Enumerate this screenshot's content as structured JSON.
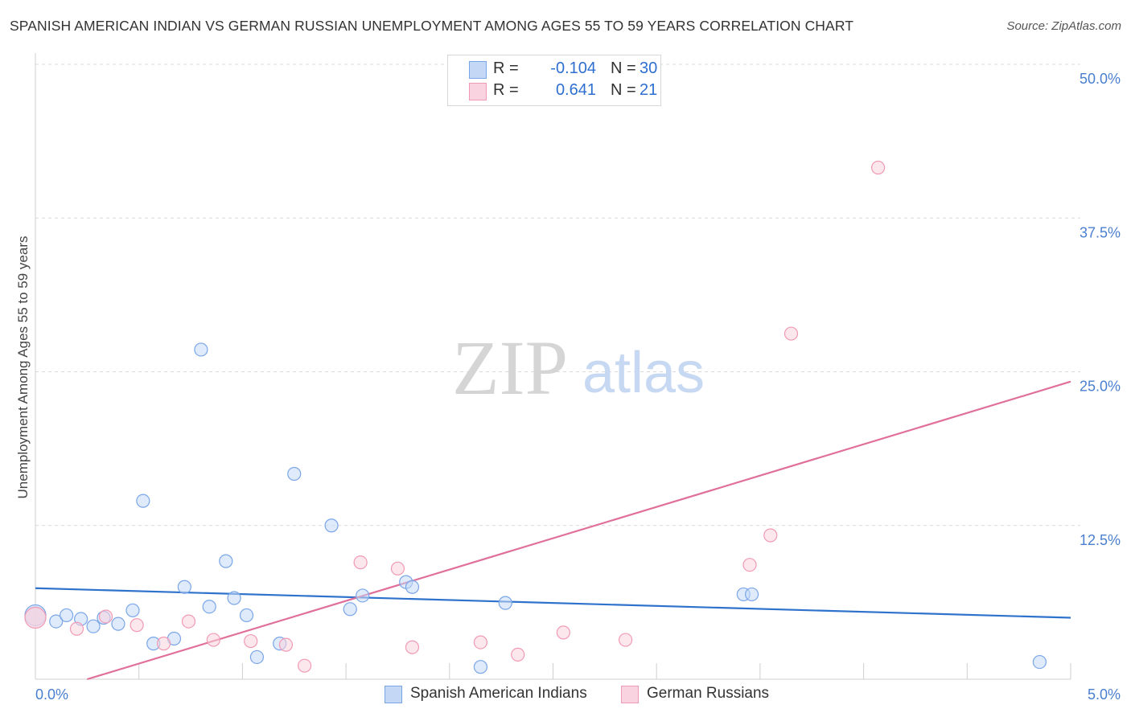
{
  "title": "SPANISH AMERICAN INDIAN VS GERMAN RUSSIAN UNEMPLOYMENT AMONG AGES 55 TO 59 YEARS CORRELATION CHART",
  "source": "Source: ZipAtlas.com",
  "watermark": {
    "zip": "ZIP",
    "atlas": "atlas"
  },
  "legend_stats": [
    {
      "r_label": "R =",
      "r_value": "-0.104",
      "n_label": "N =",
      "n_value": "30"
    },
    {
      "r_label": "R =",
      "r_value": "0.641",
      "n_label": "N =",
      "n_value": "21"
    }
  ],
  "chart_data": {
    "type": "scatter",
    "title": "SPANISH AMERICAN INDIAN VS GERMAN RUSSIAN UNEMPLOYMENT AMONG AGES 55 TO 59 YEARS CORRELATION CHART",
    "xlabel": "",
    "ylabel": "Unemployment Among Ages 55 to 59 years",
    "xlim": [
      0,
      5
    ],
    "ylim": [
      0,
      50
    ],
    "x_tick_labels": [
      "0.0%",
      "5.0%"
    ],
    "y_tick_labels": [
      "12.5%",
      "25.0%",
      "37.5%",
      "50.0%"
    ],
    "y_ticks": [
      12.5,
      25,
      37.5,
      50
    ],
    "legend_position": "bottom",
    "series": [
      {
        "name": "Spanish American Indians",
        "color": "#7aa6e8",
        "fill": "#c4d8f6",
        "line_color": "#2f72cc",
        "trend": [
          [
            0,
            7.4
          ],
          [
            5,
            5.0
          ]
        ],
        "points": [
          [
            0.0,
            5.2
          ],
          [
            0.1,
            4.7
          ],
          [
            0.15,
            5.2
          ],
          [
            0.22,
            4.9
          ],
          [
            0.28,
            4.3
          ],
          [
            0.33,
            5.0
          ],
          [
            0.4,
            4.5
          ],
          [
            0.47,
            5.6
          ],
          [
            0.52,
            14.5
          ],
          [
            0.57,
            2.9
          ],
          [
            0.67,
            3.3
          ],
          [
            0.72,
            7.5
          ],
          [
            0.8,
            26.8
          ],
          [
            0.84,
            5.9
          ],
          [
            0.92,
            9.6
          ],
          [
            0.96,
            6.6
          ],
          [
            1.02,
            5.2
          ],
          [
            1.07,
            1.8
          ],
          [
            1.18,
            2.9
          ],
          [
            1.25,
            16.7
          ],
          [
            1.43,
            12.5
          ],
          [
            1.52,
            5.7
          ],
          [
            1.58,
            6.8
          ],
          [
            1.79,
            7.9
          ],
          [
            1.82,
            7.5
          ],
          [
            2.15,
            1.0
          ],
          [
            2.27,
            6.2
          ],
          [
            3.42,
            6.9
          ],
          [
            3.46,
            6.9
          ],
          [
            4.85,
            1.4
          ]
        ]
      },
      {
        "name": "German Russians",
        "color": "#f09ab5",
        "fill": "#f9d3df",
        "line_color": "#e0709a",
        "trend": [
          [
            0.25,
            0
          ],
          [
            5,
            24.2
          ]
        ],
        "points": [
          [
            0.0,
            5.0
          ],
          [
            0.2,
            4.1
          ],
          [
            0.34,
            5.1
          ],
          [
            0.49,
            4.4
          ],
          [
            0.62,
            2.9
          ],
          [
            0.74,
            4.7
          ],
          [
            0.86,
            3.2
          ],
          [
            1.04,
            3.1
          ],
          [
            1.21,
            2.8
          ],
          [
            1.3,
            1.1
          ],
          [
            1.57,
            9.5
          ],
          [
            1.75,
            9.0
          ],
          [
            1.82,
            2.6
          ],
          [
            2.15,
            3.0
          ],
          [
            2.33,
            2.0
          ],
          [
            2.55,
            3.8
          ],
          [
            2.85,
            3.2
          ],
          [
            3.45,
            9.3
          ],
          [
            3.55,
            11.7
          ],
          [
            3.65,
            28.1
          ],
          [
            4.07,
            41.6
          ]
        ]
      }
    ]
  }
}
